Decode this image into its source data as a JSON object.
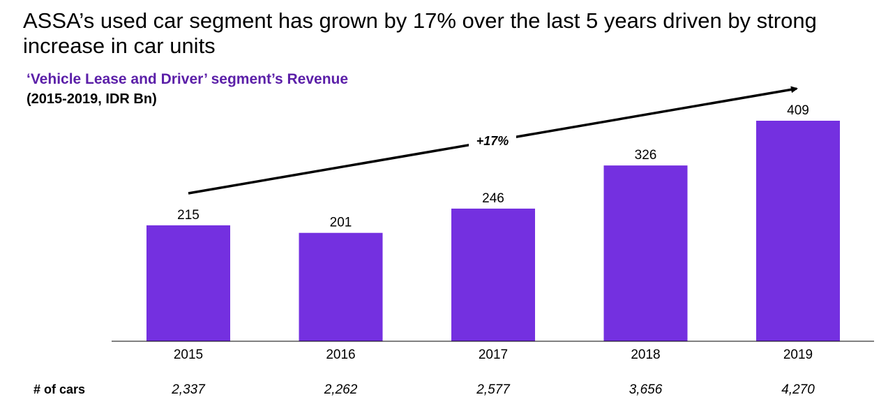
{
  "headline": "ASSA’s used car segment has grown by 17% over the last 5 years driven by strong increase in car units",
  "colors": {
    "title": "#5b1fa8",
    "bar": "#7430e0"
  },
  "chart_data": {
    "type": "bar",
    "title": "‘Vehicle Lease and Driver’ segment’s Revenue",
    "subtitle": "(2015-2019, IDR Bn)",
    "categories": [
      "2015",
      "2016",
      "2017",
      "2018",
      "2019"
    ],
    "values": [
      215,
      201,
      246,
      326,
      409
    ],
    "data_labels": [
      "215",
      "201",
      "246",
      "326",
      "409"
    ],
    "ylim": [
      0,
      409
    ],
    "grid": false,
    "annotation": "+17%",
    "cars_row": {
      "label": "# of cars",
      "values": [
        "2,337",
        "2,262",
        "2,577",
        "3,656",
        "4,270"
      ]
    }
  }
}
